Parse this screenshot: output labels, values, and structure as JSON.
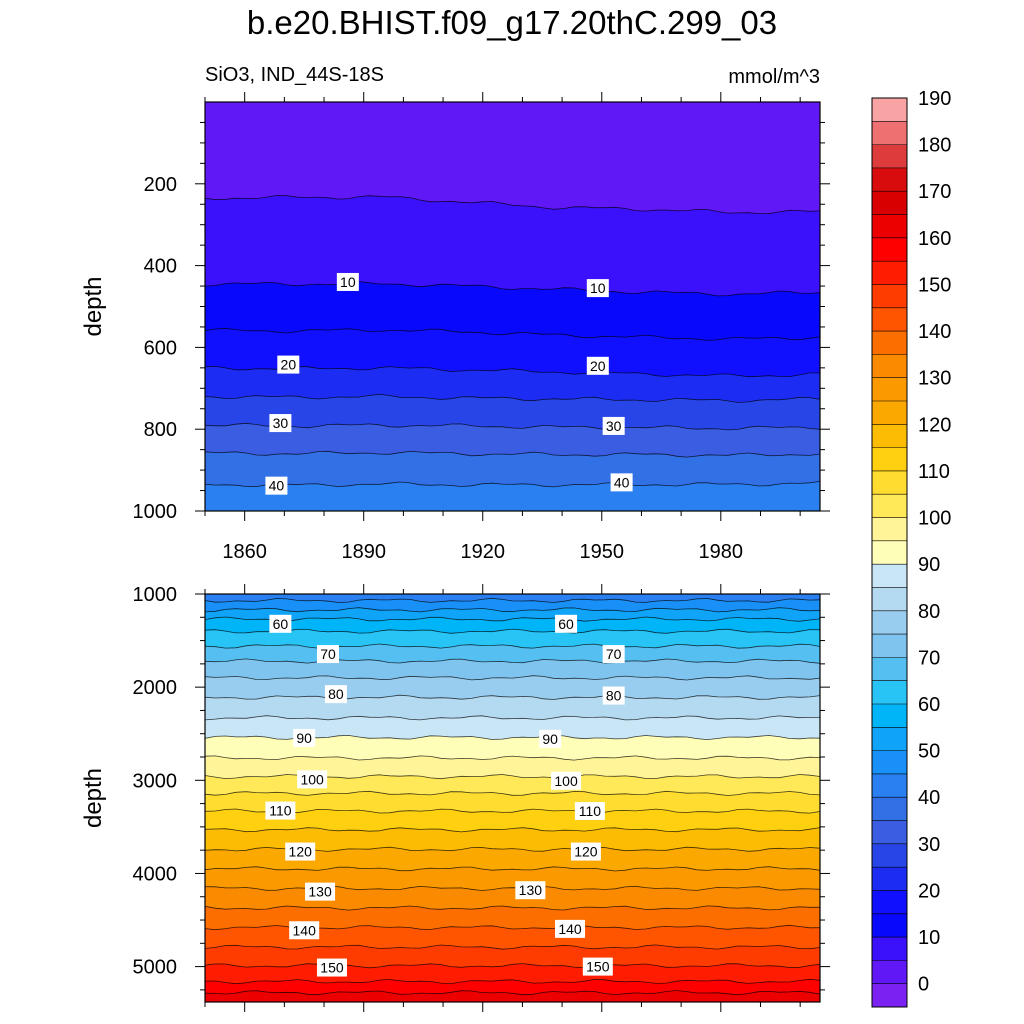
{
  "title": "b.e20.BHIST.f09_g17.20thC.299_03",
  "subtitle_left": "SiO3, IND_44S-18S",
  "subtitle_right": "mmol/m^3",
  "chart_data": [
    {
      "type": "contour",
      "panel": "upper",
      "xlabel": "",
      "ylabel": "depth",
      "xlim": [
        1850,
        2005
      ],
      "ylim": [
        1000,
        0
      ],
      "xticks": [
        1860,
        1890,
        1920,
        1950,
        1980
      ],
      "yticks": [
        200,
        400,
        600,
        800,
        1000
      ],
      "contour_interval": 5,
      "contour_labels": [
        {
          "value": "10",
          "x": 1886,
          "y": 440
        },
        {
          "value": "10",
          "x": 1949,
          "y": 455
        },
        {
          "value": "20",
          "x": 1871,
          "y": 642
        },
        {
          "value": "20",
          "x": 1949,
          "y": 645
        },
        {
          "value": "30",
          "x": 1869,
          "y": 785
        },
        {
          "value": "30",
          "x": 1953,
          "y": 792
        },
        {
          "value": "40",
          "x": 1868,
          "y": 938
        },
        {
          "value": "40",
          "x": 1955,
          "y": 930
        }
      ],
      "levels": [
        {
          "value": 5,
          "depth": [
            235,
            233,
            232,
            245,
            258,
            262,
            270,
            268
          ]
        },
        {
          "value": 10,
          "depth": [
            445,
            445,
            444,
            450,
            458,
            465,
            470,
            465
          ]
        },
        {
          "value": 15,
          "depth": [
            558,
            560,
            557,
            562,
            570,
            575,
            580,
            575
          ]
        },
        {
          "value": 20,
          "depth": [
            650,
            652,
            650,
            655,
            660,
            665,
            670,
            666
          ]
        },
        {
          "value": 25,
          "depth": [
            720,
            722,
            720,
            724,
            726,
            728,
            730,
            726
          ]
        },
        {
          "value": 30,
          "depth": [
            790,
            792,
            790,
            792,
            795,
            796,
            798,
            795
          ]
        },
        {
          "value": 35,
          "depth": [
            858,
            860,
            857,
            860,
            862,
            862,
            864,
            860
          ]
        },
        {
          "value": 40,
          "depth": [
            935,
            937,
            934,
            936,
            936,
            935,
            935,
            932
          ]
        }
      ]
    },
    {
      "type": "contour",
      "panel": "lower",
      "xlabel": "",
      "ylabel": "depth",
      "xlim": [
        1850,
        2005
      ],
      "ylim": [
        5380,
        1000
      ],
      "xticks": [
        1860,
        1890,
        1920,
        1950,
        1980
      ],
      "yticks": [
        1000,
        2000,
        3000,
        4000,
        5000
      ],
      "contour_interval": 5,
      "contour_labels": [
        {
          "value": "60",
          "x": 1869,
          "y": 1320
        },
        {
          "value": "60",
          "x": 1941,
          "y": 1320
        },
        {
          "value": "70",
          "x": 1881,
          "y": 1645
        },
        {
          "value": "70",
          "x": 1953,
          "y": 1645
        },
        {
          "value": "80",
          "x": 1883,
          "y": 2075
        },
        {
          "value": "80",
          "x": 1953,
          "y": 2090
        },
        {
          "value": "90",
          "x": 1875,
          "y": 2545
        },
        {
          "value": "90",
          "x": 1937,
          "y": 2555
        },
        {
          "value": "100",
          "x": 1877,
          "y": 2990
        },
        {
          "value": "100",
          "x": 1941,
          "y": 3005
        },
        {
          "value": "110",
          "x": 1869,
          "y": 3325
        },
        {
          "value": "110",
          "x": 1947,
          "y": 3330
        },
        {
          "value": "120",
          "x": 1874,
          "y": 3765
        },
        {
          "value": "120",
          "x": 1946,
          "y": 3765
        },
        {
          "value": "130",
          "x": 1879,
          "y": 4195
        },
        {
          "value": "130",
          "x": 1932,
          "y": 4180
        },
        {
          "value": "140",
          "x": 1875,
          "y": 4610
        },
        {
          "value": "140",
          "x": 1942,
          "y": 4595
        },
        {
          "value": "150",
          "x": 1882,
          "y": 5010
        },
        {
          "value": "150",
          "x": 1949,
          "y": 5000
        }
      ],
      "levels": [
        {
          "value": 45,
          "depth": 1070
        },
        {
          "value": 50,
          "depth": 1170
        },
        {
          "value": 55,
          "depth": 1270
        },
        {
          "value": 60,
          "depth": 1400
        },
        {
          "value": 65,
          "depth": 1560
        },
        {
          "value": 70,
          "depth": 1720
        },
        {
          "value": 75,
          "depth": 1900
        },
        {
          "value": 80,
          "depth": 2110
        },
        {
          "value": 85,
          "depth": 2330
        },
        {
          "value": 90,
          "depth": 2540
        },
        {
          "value": 95,
          "depth": 2760
        },
        {
          "value": 100,
          "depth": 2960
        },
        {
          "value": 105,
          "depth": 3140
        },
        {
          "value": 110,
          "depth": 3330
        },
        {
          "value": 115,
          "depth": 3530
        },
        {
          "value": 120,
          "depth": 3740
        },
        {
          "value": 125,
          "depth": 3950
        },
        {
          "value": 130,
          "depth": 4160
        },
        {
          "value": 135,
          "depth": 4370
        },
        {
          "value": 140,
          "depth": 4580
        },
        {
          "value": 145,
          "depth": 4790
        },
        {
          "value": 150,
          "depth": 4990
        },
        {
          "value": 155,
          "depth": 5160
        },
        {
          "value": 160,
          "depth": 5280
        }
      ]
    }
  ],
  "colorbar": {
    "labels": [
      "0",
      "10",
      "20",
      "30",
      "40",
      "50",
      "60",
      "70",
      "80",
      "90",
      "100",
      "110",
      "120",
      "130",
      "140",
      "150",
      "160",
      "170",
      "180",
      "190"
    ],
    "colors": [
      "#7b22f2",
      "#6018f7",
      "#3b10fa",
      "#0808fa",
      "#1010ff",
      "#1c2cf2",
      "#2846e8",
      "#3a5de2",
      "#3270e6",
      "#2a80f0",
      "#1890f8",
      "#10a4f8",
      "#00b4f8",
      "#28c4f6",
      "#56bff2",
      "#7ec4ef",
      "#98cdf0",
      "#b4daf2",
      "#c8e6f6",
      "#fefeb8",
      "#fff598",
      "#ffe958",
      "#ffdc30",
      "#ffd010",
      "#fcbc04",
      "#fba800",
      "#fb9a00",
      "#fa8a00",
      "#fc6e00",
      "#ff5400",
      "#ff3c00",
      "#ff1c00",
      "#ff0000",
      "#ec0000",
      "#d80000",
      "#d80c0c",
      "#de3c3c",
      "#ee7070",
      "#f8a4a4"
    ]
  }
}
